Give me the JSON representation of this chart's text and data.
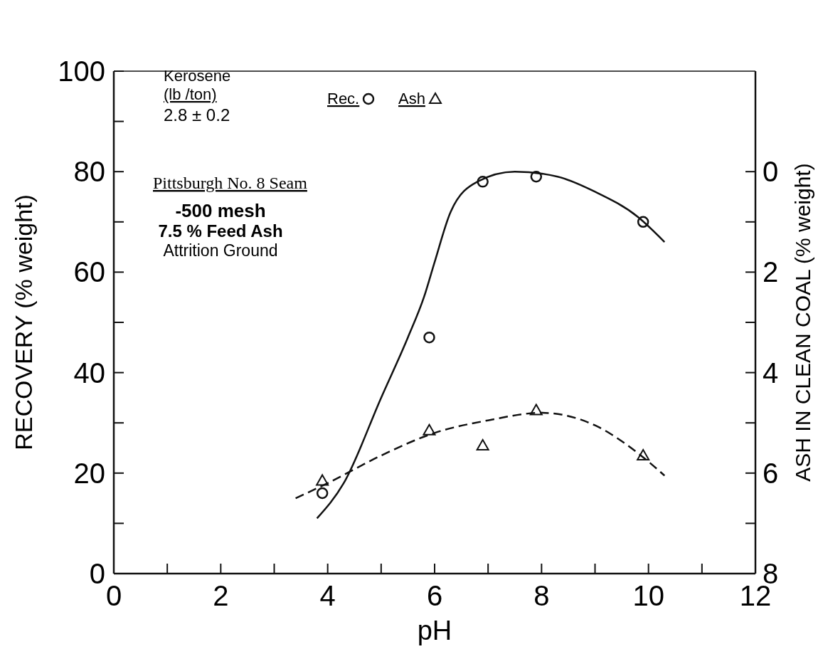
{
  "chart_data": {
    "type": "scatter",
    "xlabel": "pH",
    "ylabel": "RECOVERY  (% weight)",
    "y2label": "ASH IN CLEAN COAL (% weight)",
    "xlim": [
      0,
      12
    ],
    "xticks": [
      0,
      {
        "value": 1,
        "label": null
      },
      2,
      {
        "value": 3,
        "label": null
      },
      4,
      {
        "value": 5,
        "label": null
      },
      6,
      {
        "value": 7,
        "label": null
      },
      8,
      {
        "value": 9,
        "label": null
      },
      10,
      {
        "value": 11,
        "label": null
      },
      12
    ],
    "ylim": [
      0,
      100
    ],
    "yticks": [
      0,
      {
        "value": 10,
        "label": null
      },
      20,
      {
        "value": 30,
        "label": null
      },
      40,
      {
        "value": 50,
        "label": null
      },
      60,
      {
        "value": 70,
        "label": null
      },
      80,
      {
        "value": 90,
        "label": null
      },
      100
    ],
    "y2lim": [
      8,
      -2
    ],
    "y2ticks": [
      8,
      {
        "value": 7,
        "label": null
      },
      6,
      {
        "value": 5,
        "label": null
      },
      4,
      {
        "value": 3,
        "label": null
      },
      2,
      {
        "value": 1,
        "label": null
      },
      0
    ],
    "grid": false,
    "legend": "top left",
    "series": [
      {
        "name": "Rec.",
        "marker": "circle",
        "color": "#111111",
        "x": [
          3.9,
          5.9,
          6.9,
          7.9,
          9.9
        ],
        "values": [
          16,
          47,
          78,
          79,
          70
        ]
      },
      {
        "type": "line",
        "line_style": "solid",
        "color": "#111111",
        "x": [
          3.8,
          4.3,
          5,
          5.5,
          5.8,
          6,
          6.3,
          6.8,
          7.5,
          8.3,
          9,
          9.8,
          10.3
        ],
        "values": [
          11,
          18,
          35,
          47,
          55,
          62,
          72,
          78,
          80,
          79,
          76,
          71,
          66
        ]
      },
      {
        "name": "Ash",
        "marker": "triangle",
        "axis": "y2",
        "color": "#111111",
        "x": [
          3.9,
          5.9,
          6.9,
          7.9,
          9.9
        ],
        "values": [
          6.15,
          5.15,
          5.45,
          4.75,
          5.65
        ]
      },
      {
        "type": "line",
        "line_style": "dashed",
        "axis": "y2",
        "color": "#111111",
        "x": [
          3.4,
          4,
          5,
          6,
          7,
          8,
          9,
          9.8,
          10.3
        ],
        "values": [
          6.5,
          6.2,
          5.65,
          5.2,
          4.95,
          4.8,
          5.05,
          5.6,
          6.05
        ]
      }
    ],
    "annotations": [
      "Kerosene",
      "(lb /ton)",
      "2.8 ± 0.2",
      "Pittsburgh No. 8 Seam",
      "-500 mesh",
      "7.5 % Feed Ash",
      "Attrition Ground"
    ]
  }
}
